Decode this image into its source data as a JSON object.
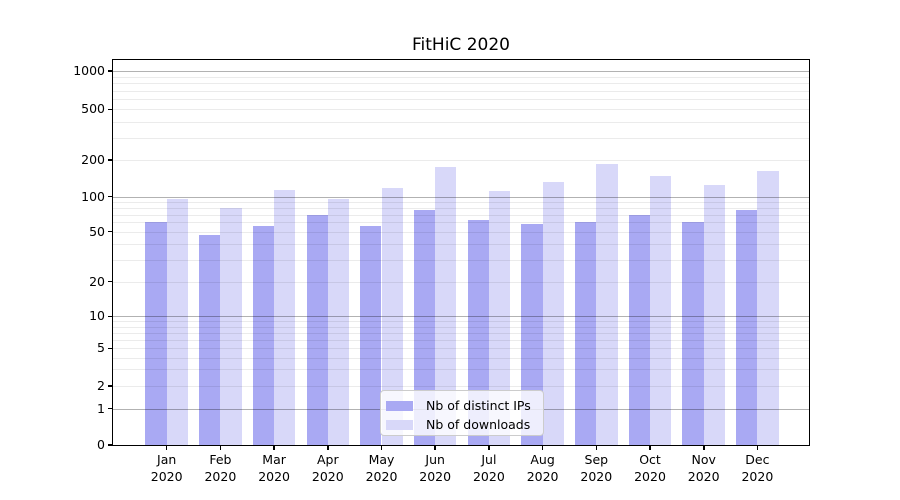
{
  "title": "FitHiC 2020",
  "chart_data": {
    "type": "bar",
    "title": "FitHiC 2020",
    "categories": [
      [
        "Jan",
        "2020"
      ],
      [
        "Feb",
        "2020"
      ],
      [
        "Mar",
        "2020"
      ],
      [
        "Apr",
        "2020"
      ],
      [
        "May",
        "2020"
      ],
      [
        "Jun",
        "2020"
      ],
      [
        "Jul",
        "2020"
      ],
      [
        "Aug",
        "2020"
      ],
      [
        "Sep",
        "2020"
      ],
      [
        "Oct",
        "2020"
      ],
      [
        "Nov",
        "2020"
      ],
      [
        "Dec",
        "2020"
      ]
    ],
    "series": [
      {
        "key": "distinct-ips",
        "name": "Nb of distinct IPs",
        "color": "#a9a9f3",
        "values": [
          60,
          47,
          56,
          70,
          56,
          76,
          63,
          58,
          60,
          70,
          60,
          77
        ]
      },
      {
        "key": "downloads",
        "name": "Nb of downloads",
        "color": "#d8d8f9",
        "values": [
          95,
          80,
          113,
          95,
          117,
          174,
          111,
          132,
          185,
          148,
          125,
          163
        ]
      }
    ],
    "xlabel": "",
    "ylabel": "",
    "y_axis": {
      "scale": "symlog",
      "ticks": [
        0,
        1,
        2,
        5,
        10,
        20,
        50,
        100,
        200,
        500,
        1000
      ],
      "major_gridline_values": [
        1,
        10,
        100,
        1000
      ],
      "ylim": [
        0,
        1200
      ],
      "grid": "both"
    },
    "legend": {
      "position": "lower center"
    }
  }
}
